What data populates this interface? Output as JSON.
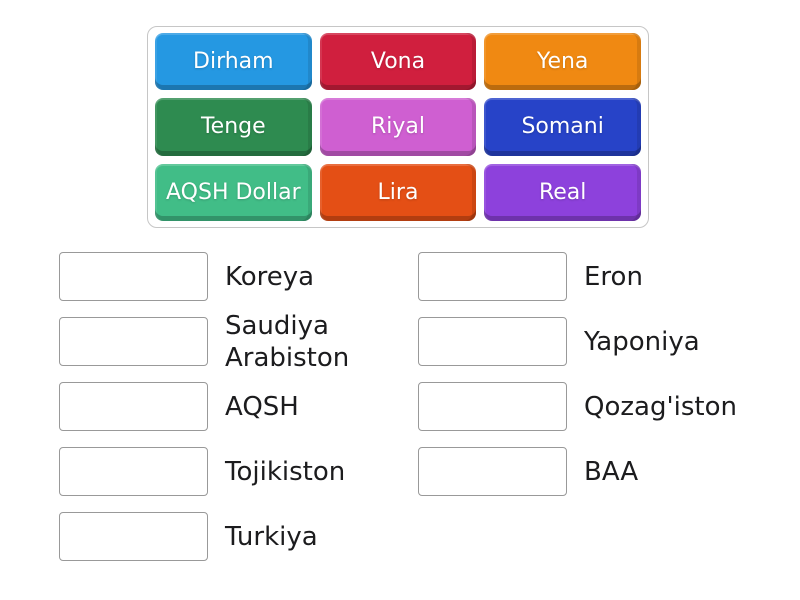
{
  "keywords_panel": {
    "tiles": [
      {
        "label": "Dirham",
        "color": "#2598e2"
      },
      {
        "label": "Vona",
        "color": "#d01f3e"
      },
      {
        "label": "Yena",
        "color": "#f08912"
      },
      {
        "label": "Tenge",
        "color": "#2e8b50"
      },
      {
        "label": "Riyal",
        "color": "#cf5fd1"
      },
      {
        "label": "Somani",
        "color": "#2743c8"
      },
      {
        "label": "AQSH Dollar",
        "color": "#41bd87"
      },
      {
        "label": "Lira",
        "color": "#e44f15"
      },
      {
        "label": "Real",
        "color": "#8d41dc"
      }
    ]
  },
  "answers": {
    "left": [
      "Koreya",
      "Saudiya Arabiston",
      "AQSH",
      "Tojikiston",
      "Turkiya"
    ],
    "right": [
      "Eron",
      "Yaponiya",
      "Qozag'iston",
      "BAA"
    ]
  }
}
